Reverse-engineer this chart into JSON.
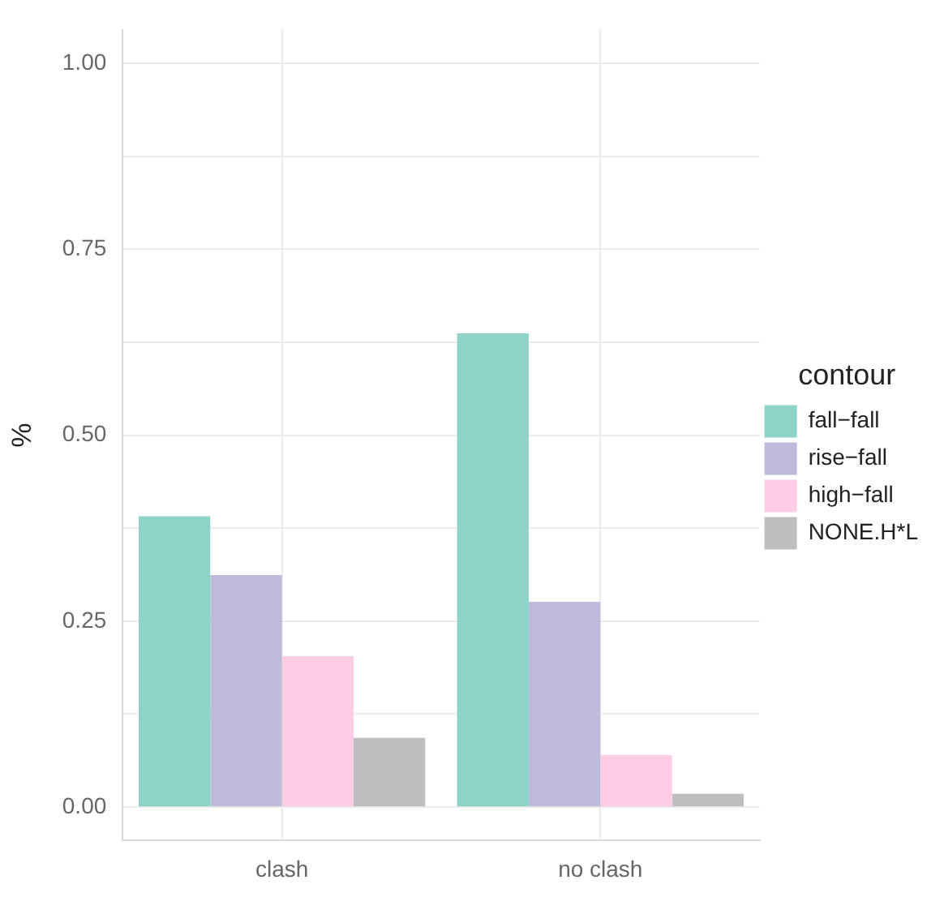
{
  "chart_data": {
    "type": "bar",
    "ylabel": "%",
    "legend_title": "contour",
    "categories": [
      "clash",
      "no clash"
    ],
    "series": [
      {
        "name": "fall−fall",
        "color": "#8dd3c7",
        "values": [
          0.391,
          0.637
        ]
      },
      {
        "name": "rise−fall",
        "color": "#bebada",
        "values": [
          0.312,
          0.276
        ]
      },
      {
        "name": "high−fall",
        "color": "#fccde5",
        "values": [
          0.203,
          0.07
        ]
      },
      {
        "name": "NONE.H*L",
        "color": "#bebebe",
        "values": [
          0.093,
          0.018
        ]
      }
    ],
    "ylim": [
      -0.045,
      1.045
    ],
    "yticks": [
      {
        "value": 0,
        "label": "0.00"
      },
      {
        "value": 0.125,
        "label": null
      },
      0.25,
      {
        "value": 0.375,
        "label": null
      },
      {
        "value": 0.5,
        "label": "0.50"
      },
      {
        "value": 0.625,
        "label": null
      },
      0.75,
      {
        "value": 0.875,
        "label": null
      },
      {
        "value": 1,
        "label": "1.00"
      }
    ],
    "grid": true,
    "legend": "right"
  }
}
